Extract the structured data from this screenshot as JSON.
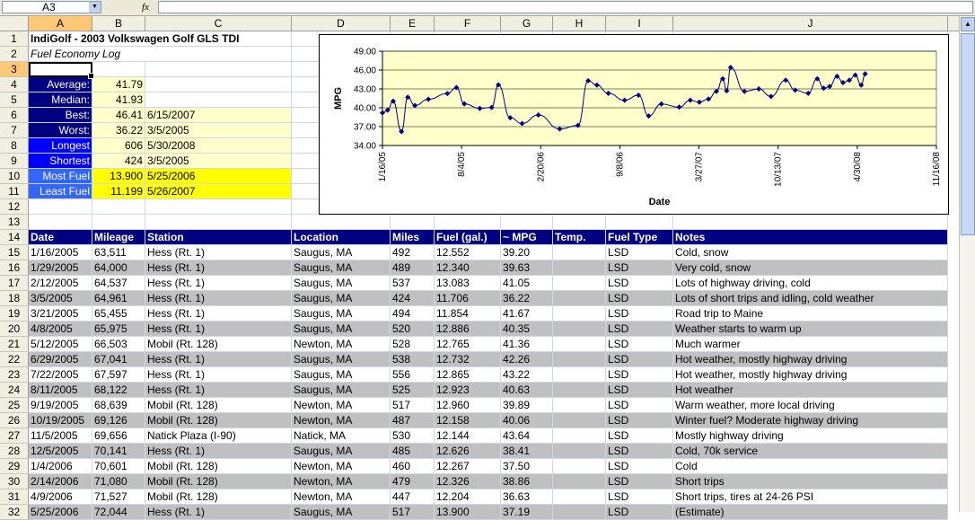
{
  "formula_bar": {
    "name_box": "A3",
    "fx": "fx",
    "value": ""
  },
  "columns": [
    "A",
    "B",
    "C",
    "D",
    "E",
    "F",
    "G",
    "H",
    "I",
    "J"
  ],
  "selected_column": "A",
  "selected_row": 3,
  "rows": [
    "1",
    "2",
    "3",
    "4",
    "5",
    "6",
    "7",
    "8",
    "9",
    "10",
    "11",
    "12",
    "13",
    "14",
    "15",
    "16",
    "17",
    "18",
    "19",
    "20",
    "21",
    "22",
    "23",
    "24",
    "25",
    "26",
    "27",
    "28",
    "29",
    "30",
    "31",
    "32"
  ],
  "sheet": {
    "title": "IndiGolf - 2003 Volkswagen Golf GLS TDI",
    "subtitle": "Fuel Economy Log",
    "stats": [
      {
        "label": "Average:",
        "value": "41.79",
        "date": ""
      },
      {
        "label": "Median:",
        "value": "41.93",
        "date": ""
      },
      {
        "label": "Best:",
        "value": "46.41",
        "date": "6/15/2007"
      },
      {
        "label": "Worst:",
        "value": "36.22",
        "date": "3/5/2005"
      },
      {
        "label": "Longest",
        "value": "606",
        "date": "5/30/2008"
      },
      {
        "label": "Shortest",
        "value": "424",
        "date": "3/5/2005"
      },
      {
        "label": "Most Fuel",
        "value": "13.900",
        "date": "5/25/2006"
      },
      {
        "label": "Least Fuel",
        "value": "11.199",
        "date": "5/26/2007"
      }
    ],
    "headers": [
      "Date",
      "Mileage",
      "Station",
      "Location",
      "Miles",
      "Fuel (gal.)",
      "~ MPG",
      "Temp.",
      "Fuel Type",
      "Notes"
    ],
    "log": [
      [
        "1/16/2005",
        "63,511",
        "Hess (Rt. 1)",
        "Saugus, MA",
        "492",
        "12.552",
        "39.20",
        "",
        "LSD",
        "Cold, snow"
      ],
      [
        "1/29/2005",
        "64,000",
        "Hess (Rt. 1)",
        "Saugus, MA",
        "489",
        "12.340",
        "39.63",
        "",
        "LSD",
        "Very cold, snow"
      ],
      [
        "2/12/2005",
        "64,537",
        "Hess (Rt. 1)",
        "Saugus, MA",
        "537",
        "13.083",
        "41.05",
        "",
        "LSD",
        "Lots of highway driving, cold"
      ],
      [
        "3/5/2005",
        "64,961",
        "Hess (Rt. 1)",
        "Saugus, MA",
        "424",
        "11.706",
        "36.22",
        "",
        "LSD",
        "Lots of short trips and idling, cold weather"
      ],
      [
        "3/21/2005",
        "65,455",
        "Hess (Rt. 1)",
        "Saugus, MA",
        "494",
        "11.854",
        "41.67",
        "",
        "LSD",
        "Road trip to Maine"
      ],
      [
        "4/8/2005",
        "65,975",
        "Hess (Rt. 1)",
        "Saugus, MA",
        "520",
        "12.886",
        "40.35",
        "",
        "LSD",
        "Weather starts to warm up"
      ],
      [
        "5/12/2005",
        "66,503",
        "Mobil (Rt. 128)",
        "Newton, MA",
        "528",
        "12.765",
        "41.36",
        "",
        "LSD",
        "Much warmer"
      ],
      [
        "6/29/2005",
        "67,041",
        "Hess (Rt. 1)",
        "Saugus, MA",
        "538",
        "12.732",
        "42.26",
        "",
        "LSD",
        "Hot weather, mostly highway driving"
      ],
      [
        "7/22/2005",
        "67,597",
        "Hess (Rt. 1)",
        "Saugus, MA",
        "556",
        "12.865",
        "43.22",
        "",
        "LSD",
        "Hot weather, mostly highway driving"
      ],
      [
        "8/11/2005",
        "68,122",
        "Hess (Rt. 1)",
        "Saugus, MA",
        "525",
        "12.923",
        "40.63",
        "",
        "LSD",
        "Hot weather"
      ],
      [
        "9/19/2005",
        "68,639",
        "Mobil (Rt. 128)",
        "Newton, MA",
        "517",
        "12.960",
        "39.89",
        "",
        "LSD",
        "Warm weather, more local driving"
      ],
      [
        "10/19/2005",
        "69,126",
        "Mobil (Rt. 128)",
        "Newton, MA",
        "487",
        "12.158",
        "40.06",
        "",
        "LSD",
        "Winter fuel? Moderate highway driving"
      ],
      [
        "11/5/2005",
        "69,656",
        "Natick Plaza (I-90)",
        "Natick, MA",
        "530",
        "12.144",
        "43.64",
        "",
        "LSD",
        "Mostly highway driving"
      ],
      [
        "12/5/2005",
        "70,141",
        "Hess (Rt. 1)",
        "Saugus, MA",
        "485",
        "12.626",
        "38.41",
        "",
        "LSD",
        "Cold, 70k service"
      ],
      [
        "1/4/2006",
        "70,601",
        "Mobil (Rt. 128)",
        "Newton, MA",
        "460",
        "12.267",
        "37.50",
        "",
        "LSD",
        "Cold"
      ],
      [
        "2/14/2006",
        "71,080",
        "Mobil (Rt. 128)",
        "Newton, MA",
        "479",
        "12.326",
        "38.86",
        "",
        "LSD",
        "Short trips"
      ],
      [
        "4/9/2006",
        "71,527",
        "Mobil (Rt. 128)",
        "Newton, MA",
        "447",
        "12.204",
        "36.63",
        "",
        "LSD",
        "Short trips, tires at 24-26 PSI"
      ],
      [
        "5/25/2006",
        "72,044",
        "Hess (Rt. 1)",
        "Saugus, MA",
        "517",
        "13.900",
        "37.19",
        "",
        "LSD",
        "(Estimate)"
      ]
    ]
  },
  "chart_data": {
    "type": "line",
    "title": "",
    "xlabel": "Date",
    "ylabel": "MPG",
    "ylim": [
      34.0,
      49.0
    ],
    "yticks": [
      "49.00",
      "46.00",
      "43.00",
      "40.00",
      "37.00",
      "34.00"
    ],
    "xticks": [
      "1/16/05",
      "8/4/05",
      "2/20/06",
      "9/8/06",
      "3/27/07",
      "10/13/07",
      "4/30/08",
      "11/16/08"
    ],
    "xlim": [
      "2005-01-16",
      "2008-11-16"
    ],
    "grid": true,
    "plot_bg": "#ffffcc",
    "line_color": "#000080",
    "series": [
      {
        "name": "",
        "points": [
          [
            "2005-01-16",
            39.2
          ],
          [
            "2005-01-29",
            39.63
          ],
          [
            "2005-02-12",
            41.05
          ],
          [
            "2005-03-05",
            36.22
          ],
          [
            "2005-03-21",
            41.67
          ],
          [
            "2005-04-08",
            40.35
          ],
          [
            "2005-05-12",
            41.36
          ],
          [
            "2005-06-29",
            42.26
          ],
          [
            "2005-07-22",
            43.22
          ],
          [
            "2005-08-11",
            40.63
          ],
          [
            "2005-09-19",
            39.89
          ],
          [
            "2005-10-19",
            40.06
          ],
          [
            "2005-11-05",
            43.64
          ],
          [
            "2005-12-05",
            38.41
          ],
          [
            "2006-01-04",
            37.5
          ],
          [
            "2006-02-14",
            38.86
          ],
          [
            "2006-04-09",
            36.63
          ],
          [
            "2006-05-25",
            37.19
          ],
          [
            "2006-06-20",
            44.3
          ],
          [
            "2006-07-12",
            43.6
          ],
          [
            "2006-08-10",
            42.3
          ],
          [
            "2006-09-20",
            41.2
          ],
          [
            "2006-10-25",
            42.0
          ],
          [
            "2006-11-20",
            38.7
          ],
          [
            "2006-12-22",
            40.6
          ],
          [
            "2007-02-05",
            40.1
          ],
          [
            "2007-03-05",
            41.2
          ],
          [
            "2007-03-28",
            40.9
          ],
          [
            "2007-04-20",
            41.4
          ],
          [
            "2007-05-10",
            42.6
          ],
          [
            "2007-05-26",
            44.6
          ],
          [
            "2007-06-05",
            42.7
          ],
          [
            "2007-06-15",
            46.41
          ],
          [
            "2007-07-20",
            42.6
          ],
          [
            "2007-08-25",
            43.0
          ],
          [
            "2007-09-25",
            41.8
          ],
          [
            "2007-11-01",
            44.4
          ],
          [
            "2007-11-25",
            42.8
          ],
          [
            "2007-12-28",
            42.3
          ],
          [
            "2008-01-20",
            44.6
          ],
          [
            "2008-02-05",
            43.1
          ],
          [
            "2008-02-20",
            43.4
          ],
          [
            "2008-03-10",
            45.0
          ],
          [
            "2008-03-25",
            44.0
          ],
          [
            "2008-04-10",
            44.4
          ],
          [
            "2008-04-25",
            45.2
          ],
          [
            "2008-05-10",
            43.6
          ],
          [
            "2008-05-20",
            45.4
          ]
        ]
      }
    ]
  }
}
